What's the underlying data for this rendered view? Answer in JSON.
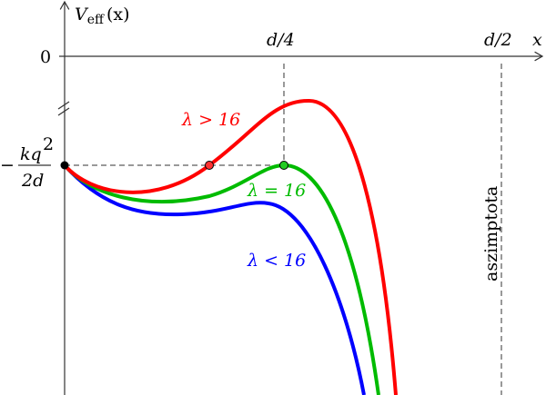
{
  "axes": {
    "y_label_main": "V",
    "y_label_sub": "eff",
    "y_label_arg": "(x)",
    "x_label": "x",
    "zero_label": "0",
    "tick_d4": "d/4",
    "tick_d2": "d/2",
    "level_label_num": "kq",
    "level_label_exp": "2",
    "level_label_den": "2d",
    "level_label_sign": "−"
  },
  "curves": [
    {
      "label": "λ > 16",
      "color": "#ff0000"
    },
    {
      "label": "λ = 16",
      "color": "#00bb00"
    },
    {
      "label": "λ < 16",
      "color": "#0000ff"
    }
  ],
  "asymptote_label": "aszimptota"
}
